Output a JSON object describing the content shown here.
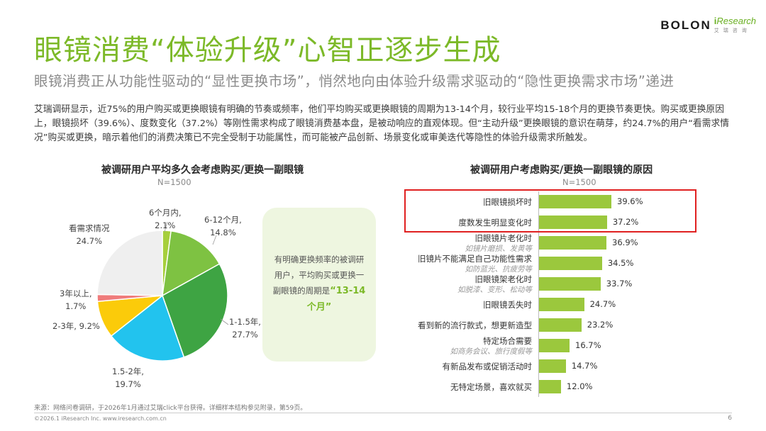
{
  "brand": {
    "bolon": "BOLON",
    "iresearch_i": "i",
    "iresearch_rest": "Research",
    "iresearch_cn": "艾瑞咨询"
  },
  "header": {
    "title": "眼镜消费“体验升级”心智正逐步生成",
    "subtitle": "眼镜消费正从功能性驱动的“显性更换市场”，悄然地向由体验升级需求驱动的“隐性更换需求市场”递进"
  },
  "intro": "艾瑞调研显示，近75%的用户购买或更换眼镜有明确的节奏或频率，他们平均购买或更换眼镜的周期为13-14个月，较行业平均15-18个月的更换节奏更快。购买或更换原因上，眼镜损坏（39.6%）、度数变化（37.2%）等刚性需求构成了眼镜消费基本盘，是被动响应的直观体现。但“主动升级”更换眼镜的意识在萌芽，约24.7%的用户“看需求情况”购买或更换，暗示着他们的消费决策已不完全受制于功能属性，而可能被产品创新、场景变化或审美迭代等隐性的体验升级需求所触发。",
  "chart_data": [
    {
      "type": "pie",
      "title": "被调研用户平均多久会考虑购买/更换一副眼镜",
      "n": "N=1500",
      "slices": [
        {
          "label": "6个月内,",
          "value": 2.1,
          "value_text": "2.1%",
          "color": "#a6cf3c"
        },
        {
          "label": "6-12个月,",
          "value": 14.8,
          "value_text": "14.8%",
          "color": "#7ec242"
        },
        {
          "label": "1-1.5年,",
          "value": 27.7,
          "value_text": "27.7%",
          "color": "#3ea443"
        },
        {
          "label": "1.5-2年,",
          "value": 19.7,
          "value_text": "19.7%",
          "color": "#22c3ee"
        },
        {
          "label": "2-3年, 9.2%",
          "value": 9.2,
          "value_text": "",
          "color": "#fbcb0a"
        },
        {
          "label": "3年以上,",
          "value": 1.7,
          "value_text": "1.7%",
          "color": "#ef7b7b"
        },
        {
          "label": "看需求情况",
          "value": 24.7,
          "value_text": "24.7%",
          "color": "#efefef"
        }
      ]
    },
    {
      "type": "bar",
      "title": "被调研用户考虑购买/更换一副眼镜的原因",
      "n": "N=1500",
      "xlim": [
        0,
        40
      ],
      "categories": [
        "旧眼镜损坏时",
        "度数发生明显变化时",
        "旧眼镜片老化时",
        "旧镜片不能满足自己功能性需求",
        "旧眼镜架老化时",
        "旧眼镜丢失时",
        "看到新的流行款式，想更新造型",
        "特定场合需要",
        "有新品发布或促销活动时",
        "无特定场景，喜欢就买"
      ],
      "notes": [
        "",
        "",
        "如镜片磨损、发黄等",
        "如防蓝光、抗疲劳等",
        "如脱漆、变形、松动等",
        "",
        "",
        "如商务会议、旅行度假等",
        "",
        ""
      ],
      "values": [
        39.6,
        37.2,
        36.9,
        34.5,
        33.7,
        24.7,
        23.2,
        16.7,
        14.7,
        12.0
      ],
      "value_labels": [
        "39.6%",
        "37.2%",
        "36.9%",
        "34.5%",
        "33.7%",
        "24.7%",
        "23.2%",
        "16.7%",
        "14.7%",
        "12.0%"
      ]
    }
  ],
  "callout": {
    "text": "有明确更换频率的被调研用户，平均购买或更换一副眼镜的周期是",
    "highlight": "“13-14个月”"
  },
  "footer": {
    "source": "来源：网络问卷调研，于2026年1月通过艾瑞click平台获得。详细样本结构参见附录，第59页。",
    "copyright": "©2026.1 iResearch Inc. www.iresearch.com.cn",
    "page": "6"
  }
}
